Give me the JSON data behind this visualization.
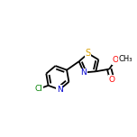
{
  "bg_color": "#ffffff",
  "bond_color": "#000000",
  "N_color": "#0000cd",
  "O_color": "#ff0000",
  "S_color": "#daa000",
  "Cl_color": "#008000",
  "bond_lw": 1.3,
  "font_size": 6.5,
  "figsize": [
    1.52,
    1.52
  ],
  "dpi": 100,
  "xlim": [
    0.0,
    1.0
  ],
  "ylim": [
    0.3,
    0.9
  ]
}
